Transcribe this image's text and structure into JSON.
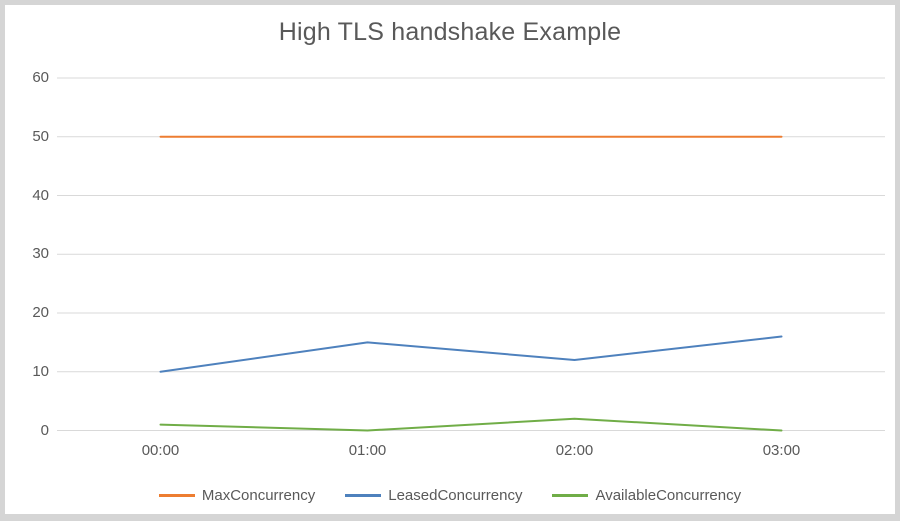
{
  "frame": {
    "border_color": "#d5d5d5",
    "background": "#ffffff"
  },
  "chart_data": {
    "type": "line",
    "title": "High TLS handshake Example",
    "title_color": "#595959",
    "text_color": "#595959",
    "categories": [
      "00:00",
      "01:00",
      "02:00",
      "03:00"
    ],
    "series": [
      {
        "name": "MaxConcurrency",
        "color": "#ed7d31",
        "values": [
          50,
          50,
          50,
          50
        ]
      },
      {
        "name": "LeasedConcurrency",
        "color": "#4e81bd",
        "values": [
          10,
          15,
          12,
          16
        ]
      },
      {
        "name": "AvailableConcurrency",
        "color": "#70ad47",
        "values": [
          1,
          0,
          2,
          0
        ]
      }
    ],
    "y_axis": {
      "min": 0,
      "max": 60,
      "step": 10,
      "ticks": [
        0,
        10,
        20,
        30,
        40,
        50,
        60
      ]
    },
    "x_axis": {
      "labels": [
        "00:00",
        "01:00",
        "02:00",
        "03:00"
      ]
    },
    "grid": {
      "horizontal": true,
      "vertical": false,
      "color": "#d9d9d9"
    },
    "legend": {
      "position": "bottom",
      "entries": [
        "MaxConcurrency",
        "LeasedConcurrency",
        "AvailableConcurrency"
      ]
    }
  }
}
